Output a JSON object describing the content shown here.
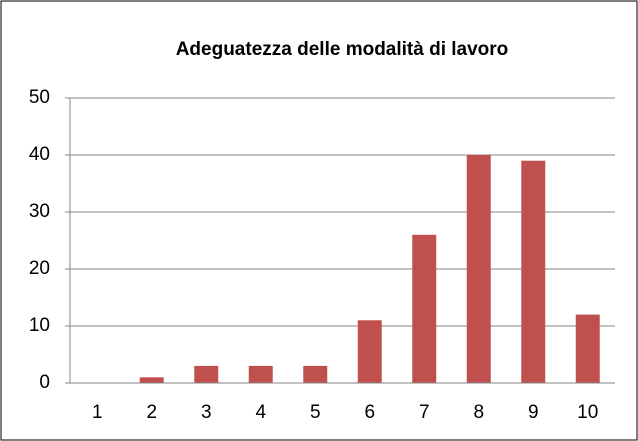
{
  "chart_data": {
    "type": "bar",
    "title": "Adeguatezza delle modalità di lavoro",
    "categories": [
      "1",
      "2",
      "3",
      "4",
      "5",
      "6",
      "7",
      "8",
      "9",
      "10"
    ],
    "values": [
      0,
      1,
      3,
      3,
      3,
      11,
      26,
      40,
      39,
      12
    ],
    "color": "#c0504d",
    "ylim": [
      0,
      50
    ],
    "yticks": [
      0,
      10,
      20,
      30,
      40,
      50
    ],
    "grid": true
  }
}
